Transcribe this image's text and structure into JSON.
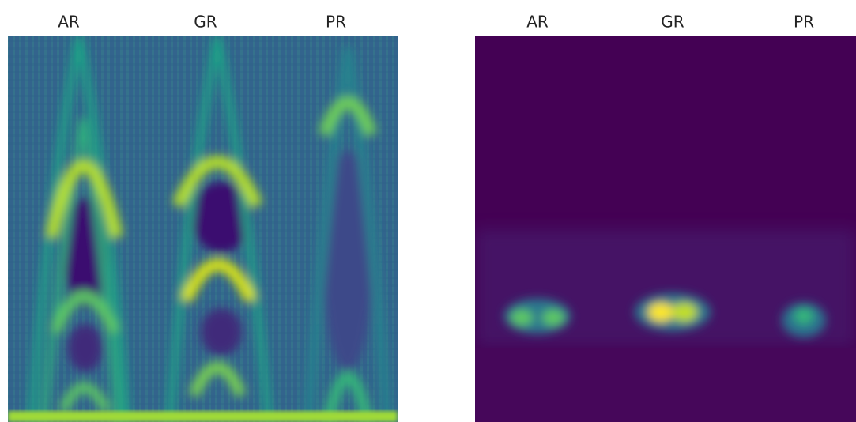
{
  "panels": [
    {
      "labels": [
        "AR",
        "GR",
        "PR"
      ]
    },
    {
      "labels": [
        "AR",
        "GR",
        "PR"
      ]
    }
  ]
}
